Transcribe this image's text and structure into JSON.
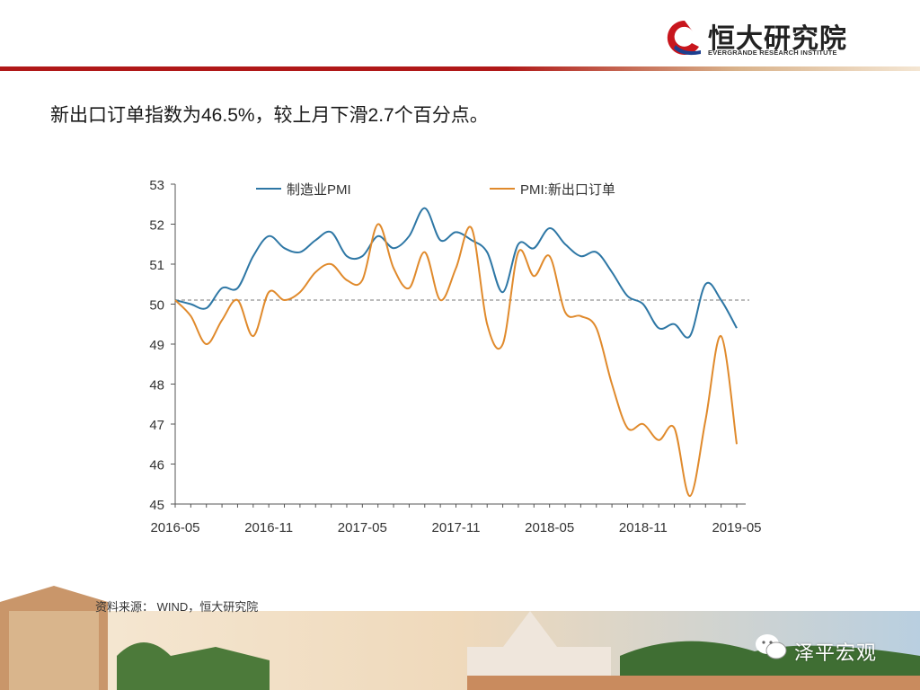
{
  "header": {
    "brand_name": "恒大研究院",
    "brand_sub": "EVERGRANDE RESEARCH INSTITUTE"
  },
  "headline": "新出口订单指数为46.5%，较上月下滑2.7个百分点。",
  "source": "资料来源： WIND，恒大研究院",
  "watermark": "泽平宏观",
  "colors": {
    "series1": "#2e77a5",
    "series2": "#e08a2c",
    "accent": "#b01818"
  },
  "chart_data": {
    "type": "line",
    "ylim": [
      45,
      53
    ],
    "yticks": [
      "45",
      "46",
      "47",
      "48",
      "49",
      "50",
      "51",
      "52",
      "53"
    ],
    "x_tick_labels": [
      "2016-05",
      "2016-11",
      "2017-05",
      "2017-11",
      "2018-05",
      "2018-11",
      "2019-05"
    ],
    "x_tick_index": [
      0,
      6,
      12,
      18,
      24,
      30,
      36
    ],
    "reference_line": 50.1,
    "series": [
      {
        "name": "制造业PMI",
        "color": "#2e77a5",
        "values": [
          50.1,
          50.0,
          49.9,
          50.4,
          50.4,
          51.2,
          51.7,
          51.4,
          51.3,
          51.6,
          51.8,
          51.2,
          51.2,
          51.7,
          51.4,
          51.7,
          52.4,
          51.6,
          51.8,
          51.6,
          51.3,
          50.3,
          51.5,
          51.4,
          51.9,
          51.5,
          51.2,
          51.3,
          50.8,
          50.2,
          50.0,
          49.4,
          49.5,
          49.2,
          50.5,
          50.1,
          49.4
        ]
      },
      {
        "name": "PMI:新出口订单",
        "color": "#e08a2c",
        "values": [
          50.1,
          49.7,
          49.0,
          49.6,
          50.1,
          49.2,
          50.3,
          50.1,
          50.3,
          50.8,
          51.0,
          50.6,
          50.6,
          52.0,
          50.9,
          50.4,
          51.3,
          50.1,
          50.9,
          51.9,
          49.5,
          49.0,
          51.3,
          50.7,
          51.2,
          49.8,
          49.7,
          49.4,
          48.0,
          46.9,
          47.0,
          46.6,
          46.9,
          45.2,
          47.1,
          49.2,
          46.5
        ]
      }
    ]
  }
}
